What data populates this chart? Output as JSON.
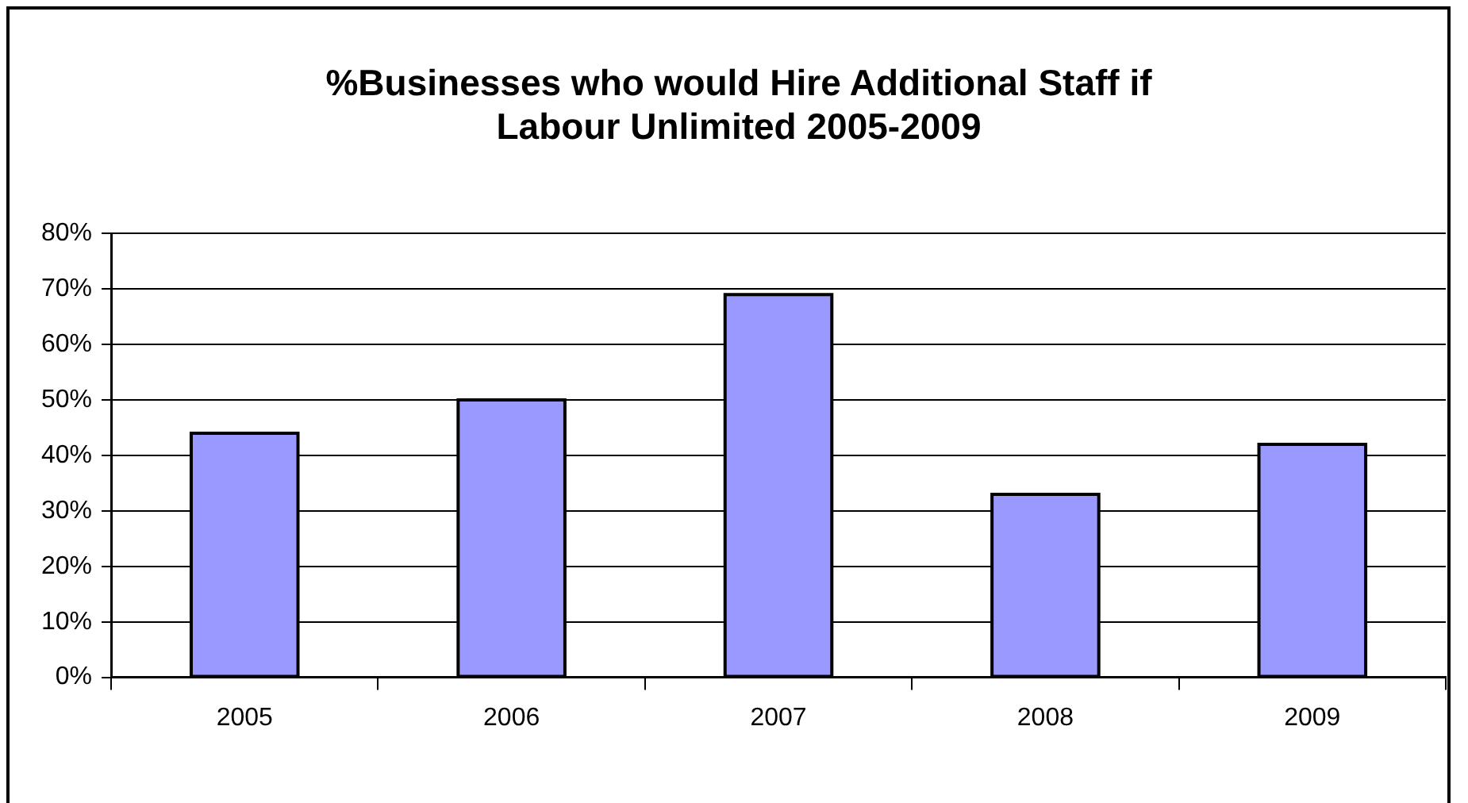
{
  "chart_data": {
    "type": "bar",
    "title": "%Businesses who would Hire Additional Staff if Labour Unlimited 2005-2009",
    "categories": [
      "2005",
      "2006",
      "2007",
      "2008",
      "2009"
    ],
    "values": [
      44,
      50,
      69,
      33,
      42
    ],
    "color": "#9999ff",
    "ylim": [
      0,
      80
    ],
    "yticks": [
      {
        "value": 0,
        "label": "0%"
      },
      {
        "value": 10,
        "label": "10%"
      },
      {
        "value": 20,
        "label": "20%"
      },
      {
        "value": 30,
        "label": "30%"
      },
      {
        "value": 40,
        "label": "40%"
      },
      {
        "value": 50,
        "label": "50%"
      },
      {
        "value": 60,
        "label": "60%"
      },
      {
        "value": 70,
        "label": "70%"
      },
      {
        "value": 80,
        "label": "80%"
      }
    ],
    "grid": "y",
    "legend": false
  }
}
